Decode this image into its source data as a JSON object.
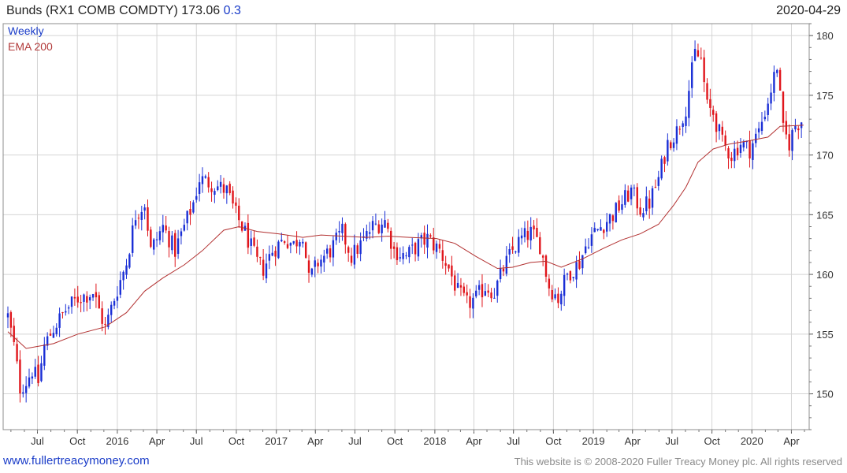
{
  "header": {
    "title": "Bunds (RX1 COMB COMDTY)",
    "price": "173.06",
    "change": "0.3",
    "date": "2020-04-29"
  },
  "legend": {
    "weekly": "Weekly",
    "ema": "EMA 200"
  },
  "footer": {
    "site": "www.fullertreacymoney.com",
    "copyright": "This website is © 2008-2020 Fuller Treacy Money plc. All rights reserved"
  },
  "colors": {
    "up": "#1a2fd6",
    "down": "#e0151b",
    "ema": "#b23030",
    "grid": "#d4d4d4"
  },
  "chart_data": {
    "type": "candlestick",
    "interval": "weekly",
    "ylim": [
      147,
      181
    ],
    "y_ticks": [
      150,
      155,
      160,
      165,
      170,
      175,
      180
    ],
    "x_range": [
      "2015-04-24",
      "2020-05-01"
    ],
    "x_ticks": [
      {
        "label": "Jul",
        "date": "2015-07-01"
      },
      {
        "label": "Oct",
        "date": "2015-10-01"
      },
      {
        "label": "2016",
        "date": "2016-01-01"
      },
      {
        "label": "Apr",
        "date": "2016-04-01"
      },
      {
        "label": "Jul",
        "date": "2016-07-01"
      },
      {
        "label": "Oct",
        "date": "2016-10-01"
      },
      {
        "label": "2017",
        "date": "2017-01-01"
      },
      {
        "label": "Apr",
        "date": "2017-04-01"
      },
      {
        "label": "Jul",
        "date": "2017-07-01"
      },
      {
        "label": "Oct",
        "date": "2017-10-01"
      },
      {
        "label": "2018",
        "date": "2018-01-01"
      },
      {
        "label": "Apr",
        "date": "2018-04-01"
      },
      {
        "label": "Jul",
        "date": "2018-07-01"
      },
      {
        "label": "Oct",
        "date": "2018-10-01"
      },
      {
        "label": "2019",
        "date": "2019-01-01"
      },
      {
        "label": "Apr",
        "date": "2019-04-01"
      },
      {
        "label": "Jul",
        "date": "2019-07-01"
      },
      {
        "label": "Oct",
        "date": "2019-10-01"
      },
      {
        "label": "2020",
        "date": "2020-01-01"
      },
      {
        "label": "Apr",
        "date": "2020-04-01"
      }
    ],
    "close_path": [
      [
        "2015-04-24",
        156.5
      ],
      [
        "2015-05-08",
        154
      ],
      [
        "2015-05-22",
        150.5
      ],
      [
        "2015-06-05",
        151
      ],
      [
        "2015-06-19",
        152
      ],
      [
        "2015-07-03",
        151
      ],
      [
        "2015-07-17",
        154
      ],
      [
        "2015-08-07",
        155.5
      ],
      [
        "2015-09-04",
        157
      ],
      [
        "2015-10-02",
        158
      ],
      [
        "2015-11-06",
        158.5
      ],
      [
        "2015-11-20",
        157
      ],
      [
        "2015-12-04",
        155.5
      ],
      [
        "2015-12-25",
        158
      ],
      [
        "2016-01-22",
        161
      ],
      [
        "2016-02-12",
        165
      ],
      [
        "2016-03-04",
        166
      ],
      [
        "2016-03-18",
        162
      ],
      [
        "2016-04-15",
        164
      ],
      [
        "2016-05-13",
        162
      ],
      [
        "2016-06-03",
        164
      ],
      [
        "2016-06-24",
        166
      ],
      [
        "2016-07-08",
        168
      ],
      [
        "2016-08-12",
        167.5
      ],
      [
        "2016-09-09",
        167
      ],
      [
        "2016-09-30",
        165
      ],
      [
        "2016-10-21",
        163.5
      ],
      [
        "2016-11-18",
        161
      ],
      [
        "2016-12-02",
        160.5
      ],
      [
        "2016-12-23",
        162
      ],
      [
        "2017-01-20",
        163
      ],
      [
        "2017-02-10",
        162.5
      ],
      [
        "2017-03-03",
        163.5
      ],
      [
        "2017-03-17",
        159.5
      ],
      [
        "2017-04-07",
        161
      ],
      [
        "2017-05-05",
        162
      ],
      [
        "2017-06-02",
        163.5
      ],
      [
        "2017-06-23",
        161.5
      ],
      [
        "2017-07-14",
        162.5
      ],
      [
        "2017-08-11",
        164
      ],
      [
        "2017-09-08",
        164.5
      ],
      [
        "2017-09-29",
        162
      ],
      [
        "2017-10-27",
        161.5
      ],
      [
        "2017-11-24",
        162.5
      ],
      [
        "2017-12-15",
        163
      ],
      [
        "2018-01-12",
        162
      ],
      [
        "2018-02-02",
        160.5
      ],
      [
        "2018-02-23",
        158.5
      ],
      [
        "2018-03-16",
        157.5
      ],
      [
        "2018-04-06",
        158
      ],
      [
        "2018-04-27",
        159
      ],
      [
        "2018-05-18",
        158.5
      ],
      [
        "2018-06-08",
        160.5
      ],
      [
        "2018-06-29",
        162
      ],
      [
        "2018-07-20",
        163
      ],
      [
        "2018-08-10",
        163.5
      ],
      [
        "2018-08-31",
        162.5
      ],
      [
        "2018-09-21",
        159
      ],
      [
        "2018-10-12",
        158
      ],
      [
        "2018-11-02",
        160
      ],
      [
        "2018-11-30",
        161
      ],
      [
        "2018-12-21",
        163
      ],
      [
        "2019-01-18",
        164
      ],
      [
        "2019-02-15",
        165
      ],
      [
        "2019-03-08",
        166
      ],
      [
        "2019-03-29",
        167
      ],
      [
        "2019-04-19",
        165.5
      ],
      [
        "2019-05-10",
        166
      ],
      [
        "2019-05-31",
        168
      ],
      [
        "2019-06-21",
        171
      ],
      [
        "2019-07-12",
        172
      ],
      [
        "2019-08-02",
        174
      ],
      [
        "2019-08-23",
        178.5
      ],
      [
        "2019-09-06",
        178
      ],
      [
        "2019-09-20",
        174
      ],
      [
        "2019-10-04",
        173.5
      ],
      [
        "2019-10-25",
        171
      ],
      [
        "2019-11-15",
        170
      ],
      [
        "2019-12-06",
        171
      ],
      [
        "2019-12-27",
        170.5
      ],
      [
        "2020-01-17",
        172
      ],
      [
        "2020-02-07",
        174.5
      ],
      [
        "2020-02-28",
        177.5
      ],
      [
        "2020-03-13",
        172
      ],
      [
        "2020-03-27",
        171
      ],
      [
        "2020-04-10",
        172.5
      ],
      [
        "2020-04-29",
        173.06
      ]
    ],
    "ema_200": [
      [
        "2015-04-24",
        155.2
      ],
      [
        "2015-06-05",
        153.8
      ],
      [
        "2015-08-07",
        154.2
      ],
      [
        "2015-10-02",
        155
      ],
      [
        "2015-12-04",
        155.6
      ],
      [
        "2016-01-22",
        156.8
      ],
      [
        "2016-03-04",
        158.6
      ],
      [
        "2016-04-15",
        159.7
      ],
      [
        "2016-06-03",
        160.8
      ],
      [
        "2016-07-15",
        162
      ],
      [
        "2016-09-02",
        163.7
      ],
      [
        "2016-10-07",
        164
      ],
      [
        "2016-11-18",
        163.6
      ],
      [
        "2017-01-06",
        163.4
      ],
      [
        "2017-03-03",
        163.1
      ],
      [
        "2017-04-14",
        163.3
      ],
      [
        "2017-06-02",
        163.2
      ],
      [
        "2017-07-28",
        163.1
      ],
      [
        "2017-09-15",
        163.2
      ],
      [
        "2017-11-03",
        163.1
      ],
      [
        "2018-01-05",
        163
      ],
      [
        "2018-02-16",
        162.6
      ],
      [
        "2018-04-06",
        161.5
      ],
      [
        "2018-05-25",
        160.5
      ],
      [
        "2018-06-29",
        160.6
      ],
      [
        "2018-08-10",
        161
      ],
      [
        "2018-09-14",
        161.1
      ],
      [
        "2018-10-19",
        160.6
      ],
      [
        "2018-12-07",
        161.3
      ],
      [
        "2019-01-25",
        162.2
      ],
      [
        "2019-03-08",
        162.9
      ],
      [
        "2019-04-19",
        163.4
      ],
      [
        "2019-05-31",
        164.2
      ],
      [
        "2019-07-05",
        165.8
      ],
      [
        "2019-08-02",
        167.3
      ],
      [
        "2019-08-30",
        169.4
      ],
      [
        "2019-10-04",
        170.5
      ],
      [
        "2019-11-08",
        170.9
      ],
      [
        "2019-12-27",
        171.2
      ],
      [
        "2020-02-07",
        171.5
      ],
      [
        "2020-03-06",
        172.4
      ],
      [
        "2020-04-29",
        172.5
      ]
    ]
  }
}
